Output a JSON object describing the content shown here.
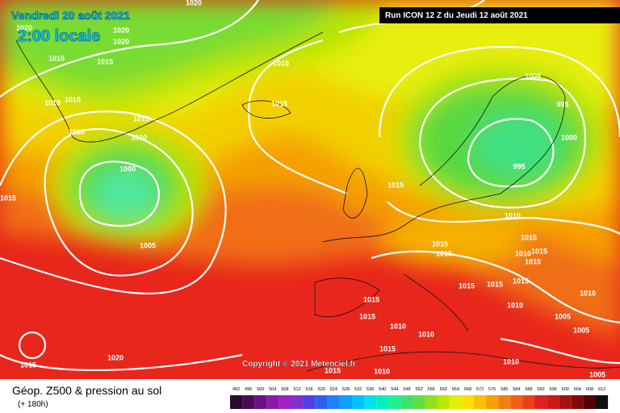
{
  "header": {
    "date": "Vendredi 20 août 2021",
    "time": "2:00 locale",
    "run": "Run ICON 12 Z du Jeudi 12 août 2021",
    "copyright": "Copyright © 2021 Meteociel.fr"
  },
  "isobar_labels": [
    1020,
    1020,
    1020,
    1020,
    1015,
    1015,
    1015,
    1010,
    1015,
    1015,
    1015,
    1010,
    1010,
    1000,
    1015,
    1005,
    1015,
    1005,
    995,
    1000,
    995,
    1010,
    1015,
    1015,
    1015,
    1010,
    1015,
    1015,
    1015,
    1015,
    1015,
    1015,
    1010,
    1010,
    1005,
    1015,
    1010,
    1005,
    1010,
    1015,
    1010,
    1020,
    1015,
    1010,
    1015,
    1005
  ],
  "legend": {
    "title": "Géop. Z500 & pression au sol",
    "subtitle": "(+ 180h)",
    "labels": [
      492,
      496,
      500,
      504,
      508,
      512,
      516,
      520,
      524,
      528,
      532,
      536,
      540,
      544,
      548,
      552,
      556,
      560,
      564,
      568,
      572,
      576,
      580,
      584,
      588,
      592,
      596,
      600,
      604,
      608,
      612
    ],
    "colors": [
      "#2a0a2e",
      "#4b0d52",
      "#6a1080",
      "#8a18a8",
      "#a020c0",
      "#8030d0",
      "#5040e0",
      "#3060f0",
      "#2080ff",
      "#10a0ff",
      "#00c0ff",
      "#00e0f0",
      "#00f0c0",
      "#20f090",
      "#40e070",
      "#60e040",
      "#90e020",
      "#b8e800",
      "#e0f000",
      "#f8e000",
      "#f8c000",
      "#f8a000",
      "#f08010",
      "#f06010",
      "#e84018",
      "#e02020",
      "#c81818",
      "#a81010",
      "#800808",
      "#500404",
      "#101010"
    ]
  }
}
